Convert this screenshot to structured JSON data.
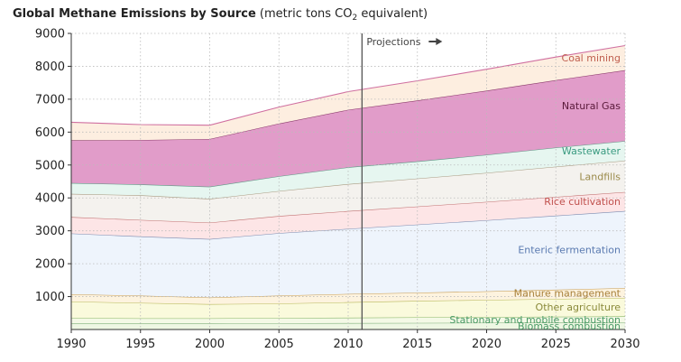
{
  "title": {
    "bold": "Global Methane Emissions by Source",
    "pre": "(metric tons CO",
    "sub": "2",
    "post": " equivalent)"
  },
  "chart_data": {
    "type": "area",
    "stacked": true,
    "title": "Global Methane Emissions by Source (metric tons CO2 equivalent)",
    "xlabel": "",
    "ylabel": "",
    "x": [
      1990,
      1995,
      2000,
      2005,
      2010,
      2015,
      2020,
      2025,
      2030
    ],
    "xticks": [
      1990,
      1995,
      2000,
      2005,
      2010,
      2015,
      2020,
      2025,
      2030
    ],
    "xlim": [
      1990,
      2030
    ],
    "ylim": [
      0,
      9000
    ],
    "yticks": [
      1000,
      2000,
      3000,
      4000,
      5000,
      6000,
      7000,
      8000,
      9000
    ],
    "grid": true,
    "projection_year": 2011,
    "projection_label": "Projections",
    "series": [
      {
        "name": "Biomass combustion",
        "values": [
          180,
          180,
          185,
          190,
          195,
          200,
          205,
          210,
          215
        ],
        "fill": "#eef7e3",
        "stroke": "#7fb07a",
        "label_color": "#4a9a66"
      },
      {
        "name": "Stationary and mobile combustion",
        "values": [
          170,
          160,
          155,
          160,
          165,
          170,
          175,
          180,
          185
        ],
        "fill": "#f4f9e6",
        "stroke": "#86b567",
        "label_color": "#4a9a66"
      },
      {
        "name": "Other agriculture",
        "values": [
          500,
          470,
          430,
          440,
          470,
          500,
          520,
          540,
          560
        ],
        "fill": "#fafadc",
        "stroke": "#b8b85a",
        "label_color": "#8a8a3a"
      },
      {
        "name": "Manure management",
        "values": [
          220,
          220,
          200,
          240,
          250,
          250,
          260,
          280,
          300
        ],
        "fill": "#fdf3df",
        "stroke": "#c89a4a",
        "label_color": "#a8803a"
      },
      {
        "name": "Enteric fermentation",
        "values": [
          1850,
          1800,
          1780,
          1900,
          1980,
          2070,
          2160,
          2250,
          2340
        ],
        "fill": "#eef4fc",
        "stroke": "#7a8bb0",
        "label_color": "#5a7ab0"
      },
      {
        "name": "Rice cultivation",
        "values": [
          500,
          500,
          500,
          520,
          540,
          550,
          560,
          570,
          580
        ],
        "fill": "#fde5e6",
        "stroke": "#c07070",
        "label_color": "#c0504d"
      },
      {
        "name": "Landfills",
        "values": [
          700,
          750,
          720,
          760,
          820,
          850,
          880,
          920,
          950
        ],
        "fill": "#f4f2ee",
        "stroke": "#a89a80",
        "label_color": "#9a8a4a"
      },
      {
        "name": "Wastewater",
        "values": [
          330,
          330,
          370,
          450,
          510,
          520,
          550,
          580,
          600
        ],
        "fill": "#e6f6f0",
        "stroke": "#5a9a84",
        "label_color": "#3a9a80"
      },
      {
        "name": "Natural Gas",
        "values": [
          1300,
          1350,
          1450,
          1600,
          1750,
          1850,
          1950,
          2050,
          2150
        ],
        "fill": "#e19cc9",
        "stroke": "#8a3a6a",
        "label_color": "#5a1a3a"
      },
      {
        "name": "Coal mining",
        "values": [
          550,
          470,
          420,
          500,
          550,
          600,
          650,
          700,
          750
        ],
        "fill": "#fdeee0",
        "stroke": "#d070a0",
        "label_color": "#c06050"
      }
    ]
  }
}
